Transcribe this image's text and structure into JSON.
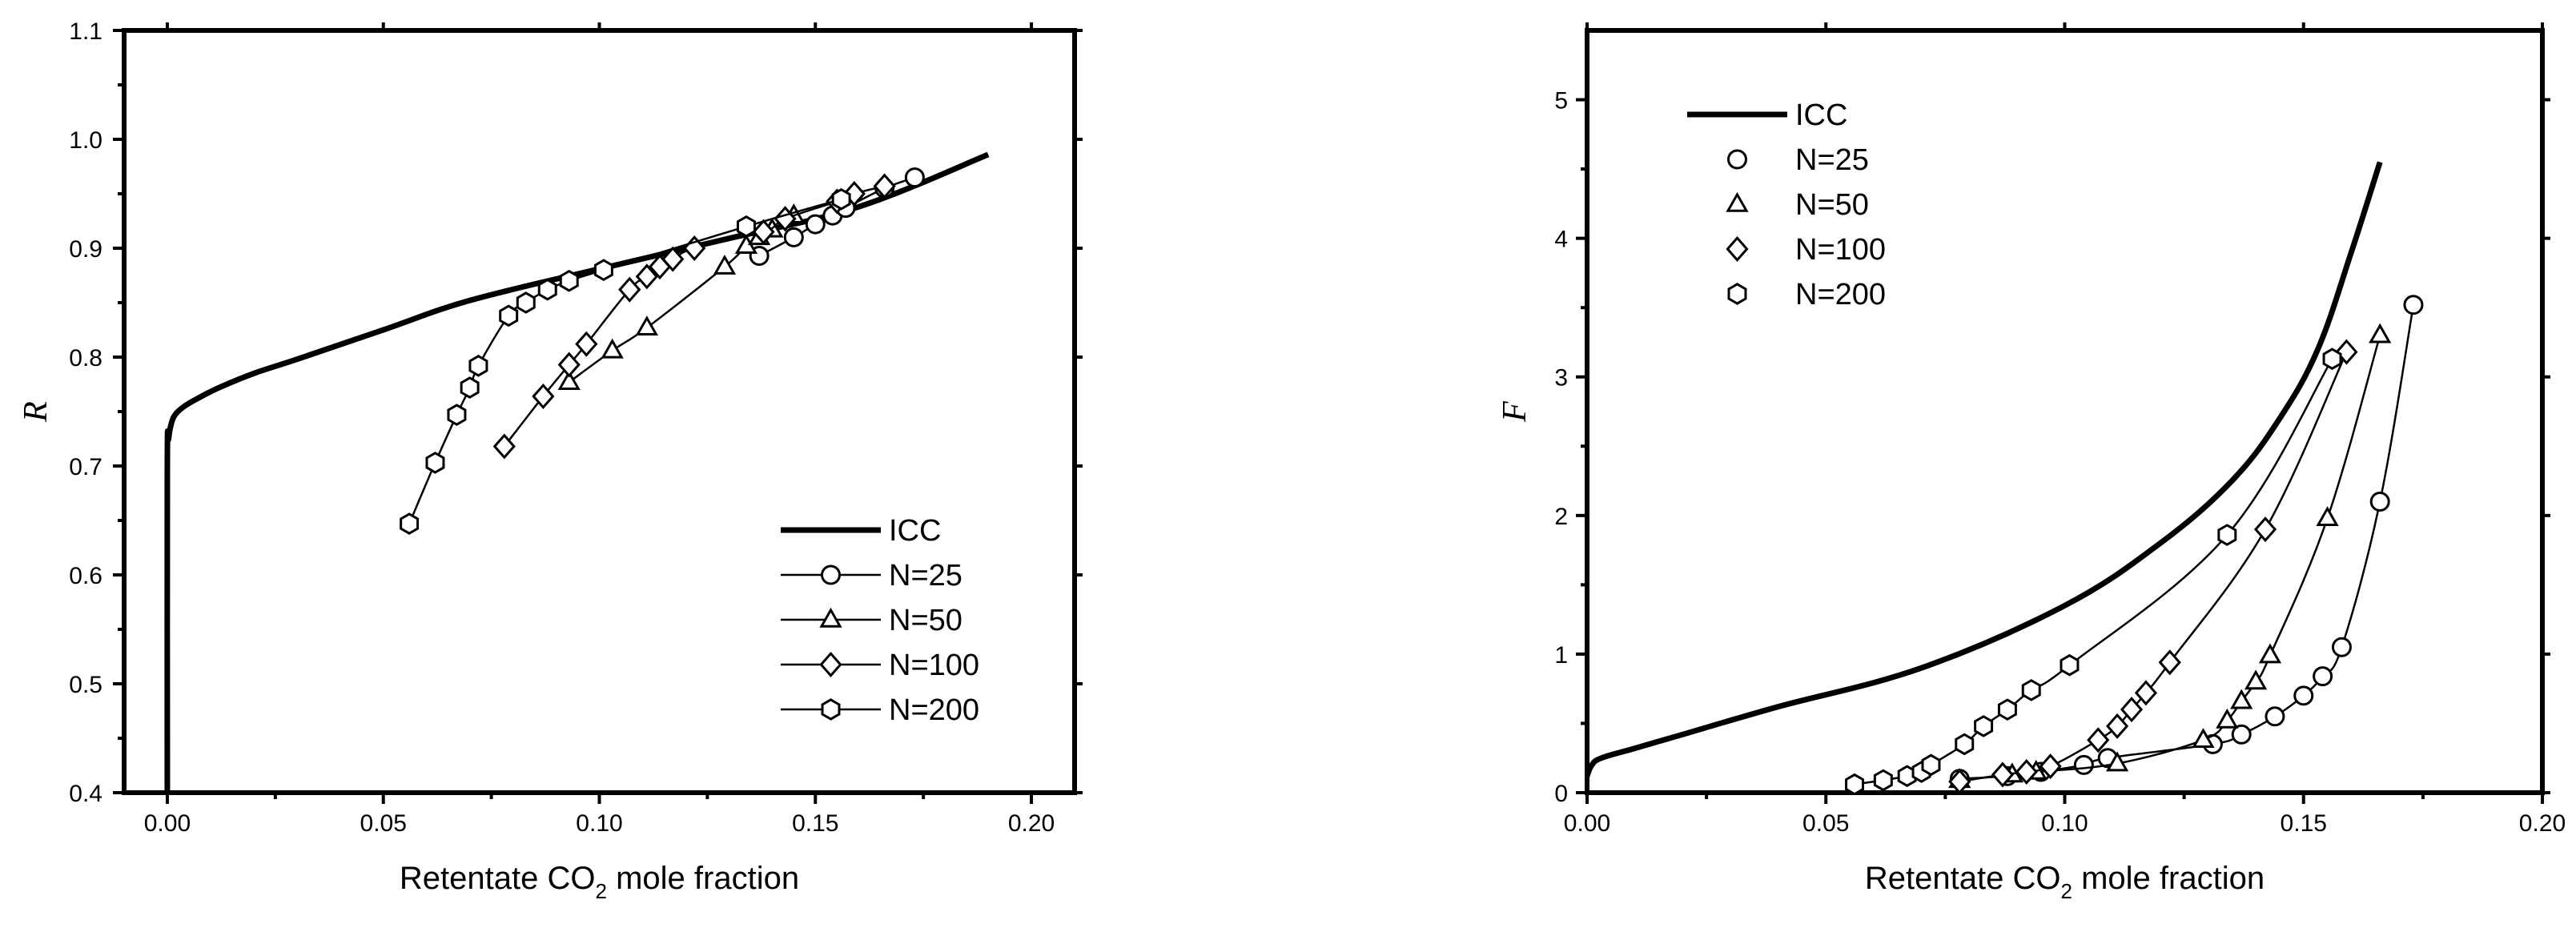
{
  "chart_data": [
    {
      "type": "line",
      "panel": "left",
      "xlabel_prefix": "Retentate CO",
      "xlabel_sub": "2",
      "xlabel_suffix": " mole fraction",
      "ylabel": "R",
      "xlim": [
        -0.01,
        0.21
      ],
      "ylim": [
        0.4,
        1.1
      ],
      "xticks": [
        0.0,
        0.05,
        0.1,
        0.15,
        0.2
      ],
      "xtick_labels": [
        "0.00",
        "0.05",
        "0.10",
        "0.15",
        "0.20"
      ],
      "yticks": [
        0.4,
        0.5,
        0.6,
        0.7,
        0.8,
        0.9,
        1.0,
        1.1
      ],
      "ytick_labels": [
        "0.4",
        "0.5",
        "0.6",
        "0.7",
        "0.8",
        "0.9",
        "1.0",
        "1.1"
      ],
      "legend_position": "bottom-right",
      "series": [
        {
          "name": "ICC",
          "marker": "none",
          "bold": true,
          "x": [
            0.0,
            0.0,
            0.0003,
            0.001,
            0.002,
            0.004,
            0.007,
            0.012,
            0.02,
            0.03,
            0.05,
            0.07,
            0.1,
            0.13,
            0.16,
            0.19
          ],
          "y": [
            0.4,
            0.7,
            0.725,
            0.74,
            0.748,
            0.755,
            0.762,
            0.772,
            0.785,
            0.798,
            0.825,
            0.852,
            0.881,
            0.909,
            0.938,
            0.986
          ]
        },
        {
          "name": "N=25",
          "marker": "circle",
          "x": [
            0.137,
            0.145,
            0.15,
            0.154,
            0.157,
            0.166,
            0.173
          ],
          "y": [
            0.893,
            0.91,
            0.922,
            0.93,
            0.937,
            0.955,
            0.965
          ]
        },
        {
          "name": "N=50",
          "marker": "triangle",
          "x": [
            0.093,
            0.103,
            0.111,
            0.129,
            0.134,
            0.137,
            0.14,
            0.145
          ],
          "y": [
            0.777,
            0.806,
            0.827,
            0.883,
            0.902,
            0.91,
            0.917,
            0.93
          ]
        },
        {
          "name": "N=100",
          "marker": "diamond",
          "x": [
            0.078,
            0.087,
            0.093,
            0.097,
            0.107,
            0.111,
            0.114,
            0.117,
            0.122,
            0.138,
            0.143,
            0.155,
            0.159,
            0.166
          ],
          "y": [
            0.718,
            0.764,
            0.793,
            0.812,
            0.862,
            0.874,
            0.883,
            0.89,
            0.9,
            0.915,
            0.927,
            0.943,
            0.95,
            0.957
          ]
        },
        {
          "name": "N=200",
          "marker": "hexagon",
          "x": [
            0.056,
            0.062,
            0.067,
            0.07,
            0.072,
            0.079,
            0.083,
            0.088,
            0.093,
            0.101,
            0.134,
            0.156
          ],
          "y": [
            0.647,
            0.703,
            0.747,
            0.772,
            0.792,
            0.838,
            0.85,
            0.862,
            0.87,
            0.88,
            0.92,
            0.945
          ]
        }
      ]
    },
    {
      "type": "line",
      "panel": "right",
      "xlabel_prefix": "Retentate CO",
      "xlabel_sub": "2",
      "xlabel_suffix": " mole fraction",
      "ylabel": "F",
      "xlim": [
        0.0,
        0.2
      ],
      "ylim": [
        0,
        5.5
      ],
      "xticks": [
        0.0,
        0.05,
        0.1,
        0.15,
        0.2
      ],
      "xtick_labels": [
        "0.00",
        "0.05",
        "0.10",
        "0.15",
        "0.20"
      ],
      "yticks": [
        0,
        1,
        2,
        3,
        4,
        5
      ],
      "ytick_labels": [
        "0",
        "1",
        "2",
        "3",
        "4",
        "5"
      ],
      "legend_position": "top-left",
      "series": [
        {
          "name": "ICC",
          "marker": "none",
          "bold": true,
          "x": [
            0.0,
            0.001,
            0.003,
            0.01,
            0.02,
            0.04,
            0.07,
            0.1,
            0.12,
            0.135,
            0.145,
            0.153,
            0.16,
            0.166
          ],
          "y": [
            0.12,
            0.2,
            0.25,
            0.32,
            0.42,
            0.62,
            0.9,
            1.35,
            1.8,
            2.25,
            2.7,
            3.2,
            3.9,
            4.55
          ]
        },
        {
          "name": "N=25",
          "marker": "circle",
          "x": [
            0.078,
            0.088,
            0.095,
            0.104,
            0.109,
            0.131,
            0.137,
            0.144,
            0.15,
            0.154,
            0.158,
            0.166,
            0.173
          ],
          "y": [
            0.1,
            0.12,
            0.15,
            0.2,
            0.25,
            0.35,
            0.42,
            0.55,
            0.7,
            0.84,
            1.05,
            2.1,
            3.52
          ]
        },
        {
          "name": "N=50",
          "marker": "triangle",
          "x": [
            0.078,
            0.089,
            0.094,
            0.111,
            0.129,
            0.134,
            0.137,
            0.14,
            0.143,
            0.155,
            0.166
          ],
          "y": [
            0.09,
            0.13,
            0.15,
            0.21,
            0.38,
            0.52,
            0.66,
            0.8,
            0.99,
            1.98,
            3.3
          ]
        },
        {
          "name": "N=100",
          "marker": "diamond",
          "x": [
            0.078,
            0.087,
            0.092,
            0.097,
            0.107,
            0.111,
            0.114,
            0.117,
            0.122,
            0.142,
            0.159
          ],
          "y": [
            0.08,
            0.13,
            0.15,
            0.19,
            0.38,
            0.48,
            0.6,
            0.72,
            0.94,
            1.9,
            3.18
          ]
        },
        {
          "name": "N=200",
          "marker": "hexagon",
          "x": [
            0.056,
            0.062,
            0.067,
            0.07,
            0.072,
            0.079,
            0.083,
            0.088,
            0.093,
            0.101,
            0.134,
            0.156
          ],
          "y": [
            0.06,
            0.09,
            0.12,
            0.15,
            0.2,
            0.35,
            0.48,
            0.6,
            0.74,
            0.92,
            1.86,
            3.13
          ]
        }
      ]
    }
  ]
}
